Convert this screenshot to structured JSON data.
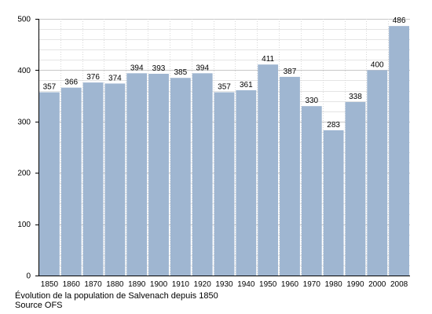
{
  "chart_data": {
    "type": "bar",
    "categories": [
      "1850",
      "1860",
      "1870",
      "1880",
      "1890",
      "1900",
      "1910",
      "1920",
      "1930",
      "1940",
      "1950",
      "1960",
      "1970",
      "1980",
      "1990",
      "2000",
      "2008"
    ],
    "values": [
      357,
      366,
      376,
      374,
      394,
      393,
      385,
      394,
      357,
      361,
      411,
      387,
      330,
      283,
      338,
      400,
      486
    ],
    "ylim": [
      0,
      500
    ],
    "yticks": [
      0,
      100,
      200,
      300,
      400,
      500
    ],
    "grid": true,
    "bar_color": "#9fb6d1",
    "grid_color": "#c8c8c8"
  },
  "caption": {
    "title": "Évolution de la population de Salvenach depuis 1850",
    "source": "Source OFS"
  }
}
